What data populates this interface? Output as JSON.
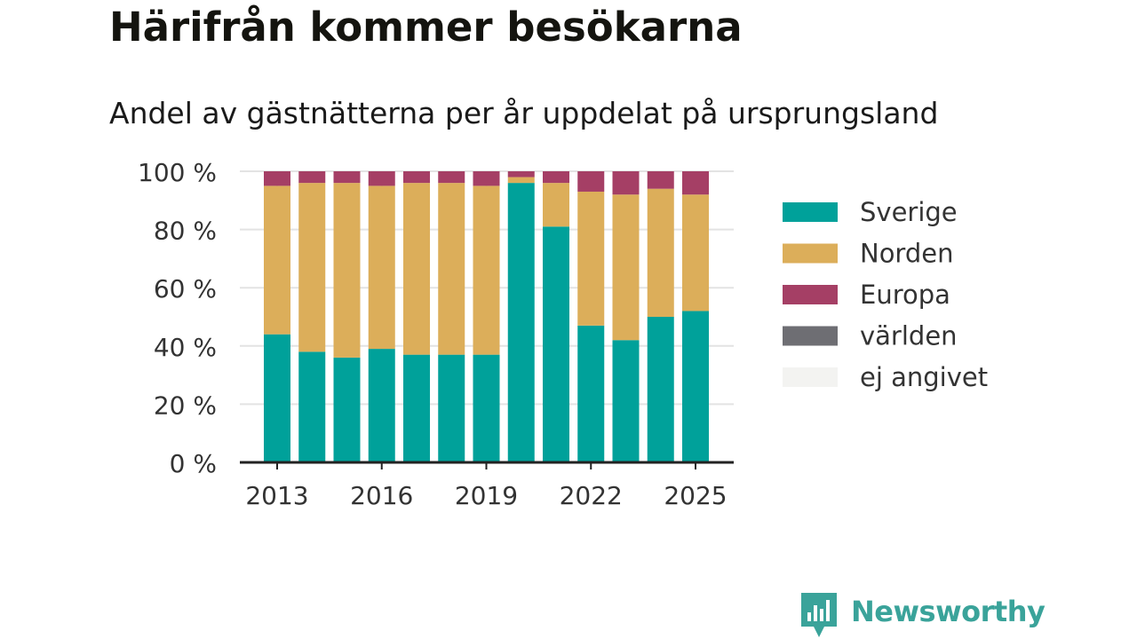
{
  "title": "Härifrån kommer besökarna",
  "subtitle": "Andel av gästnätterna per år uppdelat på ursprungsland",
  "brand": {
    "name": "Newsworthy",
    "color": "#3aa39a",
    "icon": "bar-chart-icon"
  },
  "chart_data": {
    "type": "bar",
    "stacked": true,
    "categories": [
      "2013",
      "2014",
      "2015",
      "2016",
      "2017",
      "2018",
      "2019",
      "2020",
      "2021",
      "2022",
      "2023",
      "2024",
      "2025"
    ],
    "x_tick_labels": [
      "2013",
      "2016",
      "2019",
      "2022",
      "2025"
    ],
    "y_tick_labels": [
      "0 %",
      "20 %",
      "40 %",
      "60 %",
      "80 %",
      "100 %"
    ],
    "ylim": [
      0,
      100
    ],
    "grid": true,
    "legend_position": "right",
    "series": [
      {
        "name": "Sverige",
        "color": "#00a19a",
        "values": [
          44,
          38,
          36,
          39,
          37,
          37,
          37,
          96,
          81,
          47,
          42,
          50,
          52
        ]
      },
      {
        "name": "Norden",
        "color": "#dcae5a",
        "values": [
          51,
          58,
          60,
          56,
          59,
          59,
          58,
          2,
          15,
          46,
          50,
          44,
          40
        ]
      },
      {
        "name": "Europa",
        "color": "#a53f65",
        "values": [
          5,
          4,
          4,
          5,
          4,
          4,
          5,
          2,
          4,
          7,
          8,
          6,
          8
        ]
      },
      {
        "name": "världen",
        "color": "#6e6e73",
        "values": [
          0,
          0,
          0,
          0,
          0,
          0,
          0,
          0,
          0,
          0,
          0,
          0,
          0
        ]
      },
      {
        "name": "ej angivet",
        "color": "#f3f3f1",
        "values": [
          0,
          0,
          0,
          0,
          0,
          0,
          0,
          0,
          0,
          0,
          0,
          0,
          0
        ]
      }
    ]
  }
}
